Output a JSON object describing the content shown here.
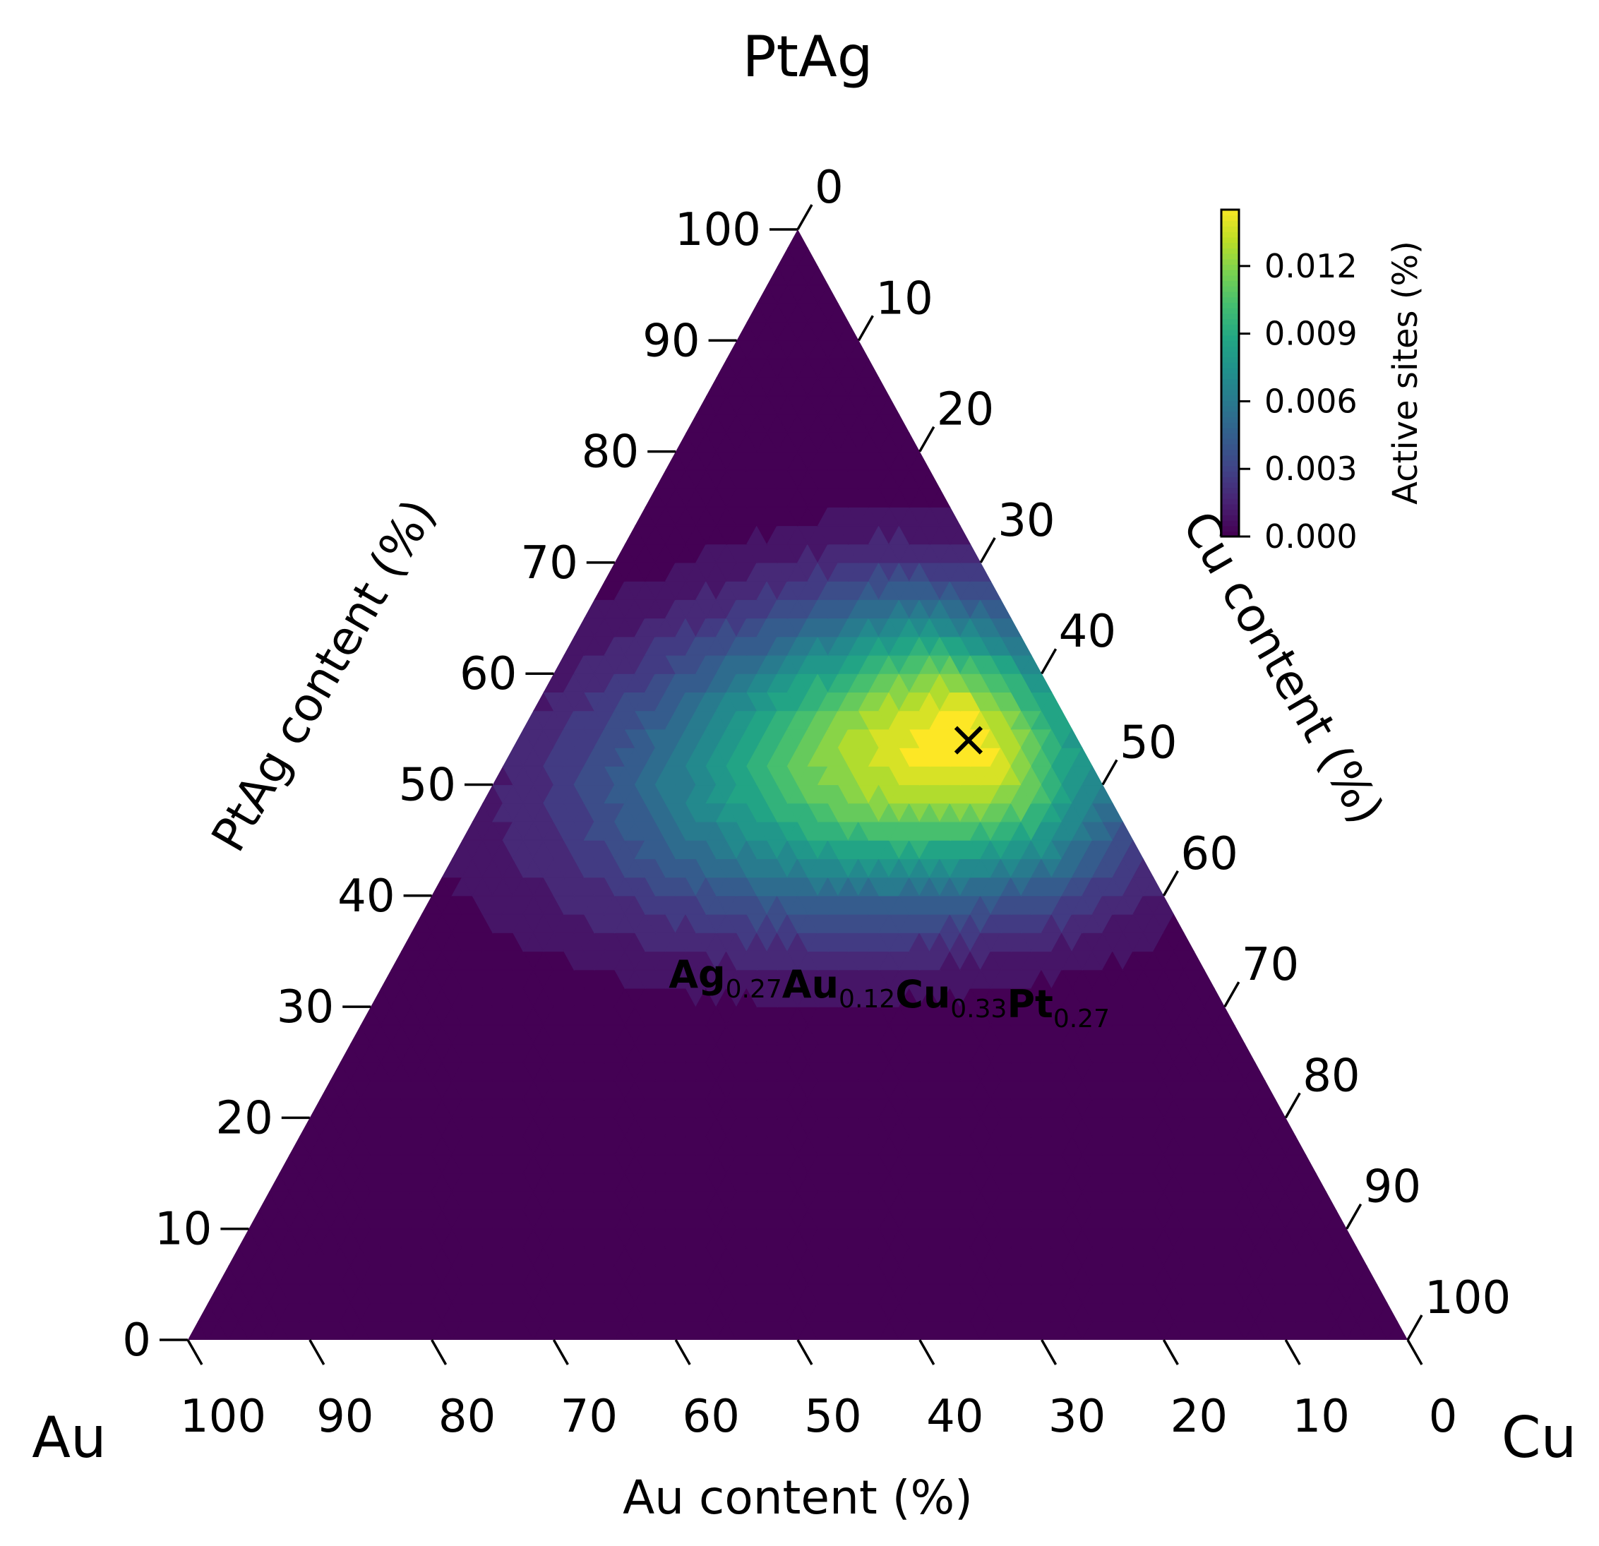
{
  "chart_data": {
    "type": "ternary-contour",
    "title": "",
    "vertices": {
      "top": "PtAg",
      "left": "Au",
      "right": "Cu"
    },
    "axes": {
      "left": {
        "label": "PtAg content (%)",
        "ticks": [
          0,
          10,
          20,
          30,
          40,
          50,
          60,
          70,
          80,
          90,
          100
        ]
      },
      "right": {
        "label": "Cu content (%)",
        "ticks": [
          0,
          10,
          20,
          30,
          40,
          50,
          60,
          70,
          80,
          90,
          100
        ]
      },
      "bottom": {
        "label": "Au content (%)",
        "ticks": [
          100,
          90,
          80,
          70,
          60,
          50,
          40,
          30,
          20,
          10,
          0
        ]
      }
    },
    "colorbar": {
      "label": "Active sites (%)",
      "colormap": "viridis",
      "range": [
        0,
        0.0145
      ],
      "ticks": [
        "0.000",
        "0.003",
        "0.006",
        "0.009",
        "0.012"
      ],
      "tick_values": [
        0,
        0.003,
        0.006,
        0.009,
        0.012
      ]
    },
    "maximum": {
      "PtAg": 54,
      "Cu": 37,
      "Au": 9,
      "marker": "x"
    },
    "field": {
      "peak_value": 0.0142,
      "falloff_PtAg": 0.14,
      "falloff_Cu": 0.25,
      "floor_PtAg": 12,
      "floor_edge": 8
    },
    "annotation": {
      "parts": [
        {
          "el": "Ag",
          "sub": "0.27"
        },
        {
          "el": "Au",
          "sub": "0.12"
        },
        {
          "el": "Cu",
          "sub": "0.33"
        },
        {
          "el": "Pt",
          "sub": "0.27"
        }
      ],
      "at": {
        "PtAg": 33,
        "Cu": 41
      }
    },
    "colors": {
      "low": "#440154",
      "mid": "#21918c",
      "high": "#fde725"
    }
  }
}
